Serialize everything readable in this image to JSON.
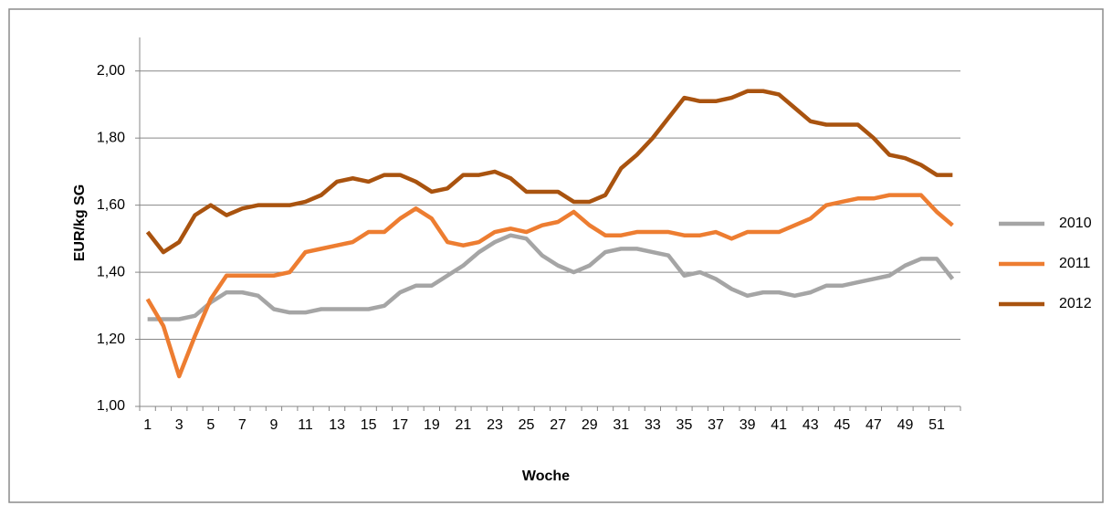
{
  "chart_data": {
    "type": "line",
    "ylabel": "EUR/kg SG",
    "xlabel": "Woche",
    "categories": [
      "1",
      null,
      "3",
      null,
      "5",
      null,
      "7",
      null,
      "9",
      null,
      "11",
      null,
      "13",
      null,
      "15",
      null,
      "17",
      null,
      "19",
      null,
      "21",
      null,
      "23",
      null,
      "25",
      null,
      "27",
      null,
      "29",
      null,
      "31",
      null,
      "33",
      null,
      "35",
      null,
      "37",
      null,
      "39",
      null,
      "41",
      null,
      "43",
      null,
      "45",
      null,
      "47",
      null,
      "49",
      null,
      "51",
      null
    ],
    "series": [
      {
        "name": "2010",
        "color": "#a5a5a5",
        "values": [
          1.26,
          1.26,
          1.26,
          1.27,
          1.31,
          1.34,
          1.34,
          1.33,
          1.29,
          1.28,
          1.28,
          1.29,
          1.29,
          1.29,
          1.29,
          1.3,
          1.34,
          1.36,
          1.36,
          1.39,
          1.42,
          1.46,
          1.49,
          1.51,
          1.5,
          1.45,
          1.42,
          1.4,
          1.42,
          1.46,
          1.47,
          1.47,
          1.46,
          1.45,
          1.39,
          1.4,
          1.38,
          1.35,
          1.33,
          1.34,
          1.34,
          1.33,
          1.34,
          1.36,
          1.36,
          1.37,
          1.38,
          1.39,
          1.42,
          1.44,
          1.44,
          1.38
        ]
      },
      {
        "name": "2011",
        "color": "#ed7d31",
        "values": [
          1.32,
          1.24,
          1.09,
          1.21,
          1.32,
          1.39,
          1.39,
          1.39,
          1.39,
          1.4,
          1.46,
          1.47,
          1.48,
          1.49,
          1.52,
          1.52,
          1.56,
          1.59,
          1.56,
          1.49,
          1.48,
          1.49,
          1.52,
          1.53,
          1.52,
          1.54,
          1.55,
          1.58,
          1.54,
          1.51,
          1.51,
          1.52,
          1.52,
          1.52,
          1.51,
          1.51,
          1.52,
          1.5,
          1.52,
          1.52,
          1.52,
          1.54,
          1.56,
          1.6,
          1.61,
          1.62,
          1.62,
          1.63,
          1.63,
          1.63,
          1.58,
          1.54
        ]
      },
      {
        "name": "2012",
        "color": "#a9530f",
        "values": [
          1.52,
          1.46,
          1.49,
          1.57,
          1.6,
          1.57,
          1.59,
          1.6,
          1.6,
          1.6,
          1.61,
          1.63,
          1.67,
          1.68,
          1.67,
          1.69,
          1.69,
          1.67,
          1.64,
          1.65,
          1.69,
          1.69,
          1.7,
          1.68,
          1.64,
          1.64,
          1.64,
          1.61,
          1.61,
          1.63,
          1.71,
          1.75,
          1.8,
          1.86,
          1.92,
          1.91,
          1.91,
          1.92,
          1.94,
          1.94,
          1.93,
          1.89,
          1.85,
          1.84,
          1.84,
          1.84,
          1.8,
          1.75,
          1.74,
          1.72,
          1.69,
          1.69
        ]
      }
    ],
    "ylim": [
      1.0,
      2.1
    ],
    "yticks": [
      {
        "value": 1.0,
        "label": "1,00"
      },
      {
        "value": 1.2,
        "label": "1,20"
      },
      {
        "value": 1.4,
        "label": "1,40"
      },
      {
        "value": 1.6,
        "label": "1,60"
      },
      {
        "value": 1.8,
        "label": "1,80"
      },
      {
        "value": 2.0,
        "label": "2,00"
      }
    ],
    "grid": true,
    "legend": "right"
  }
}
